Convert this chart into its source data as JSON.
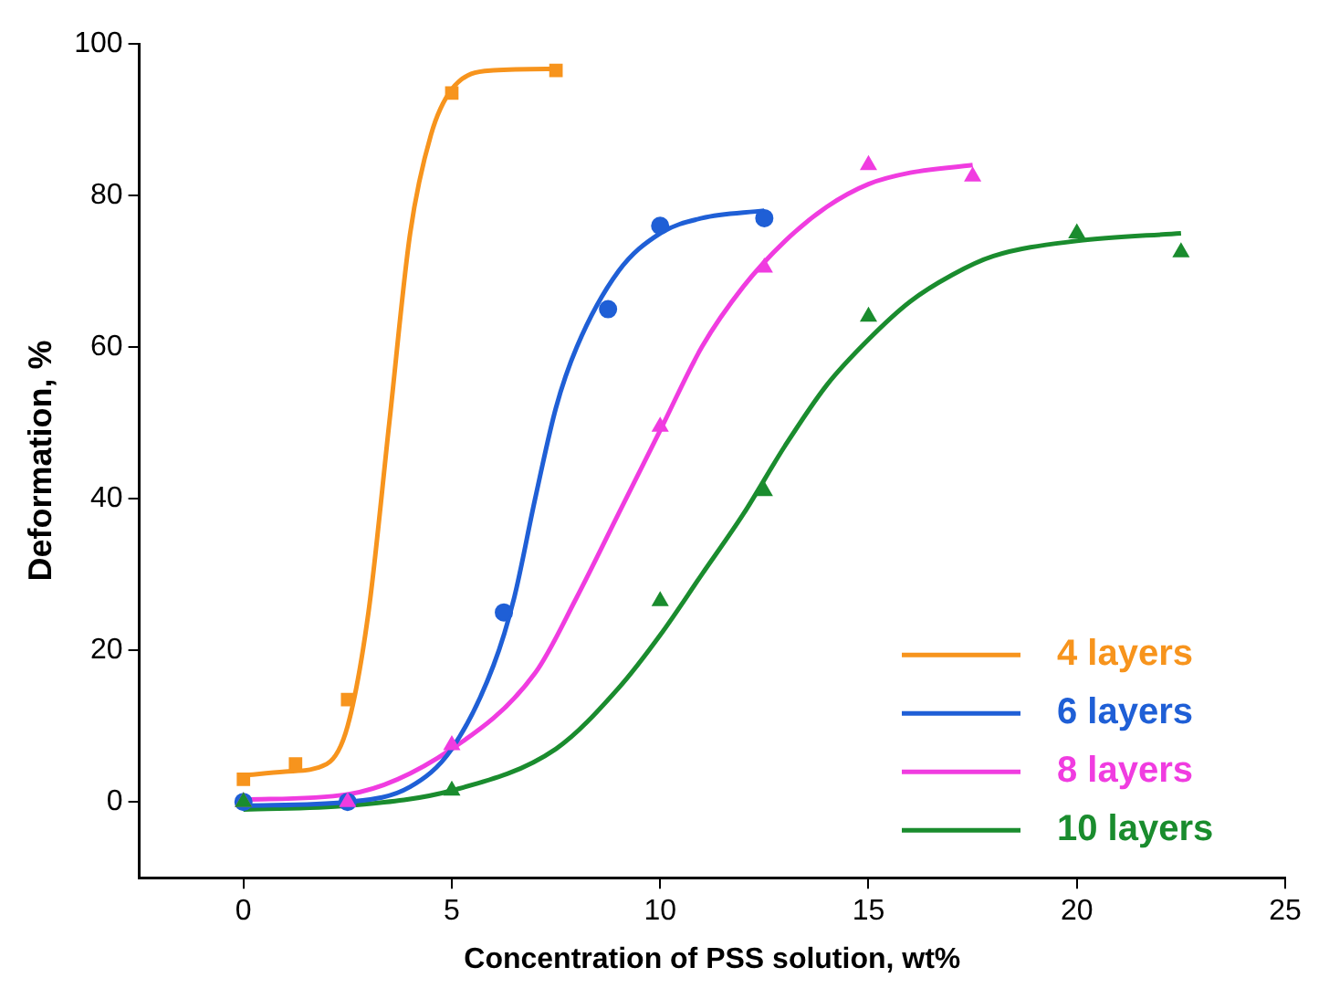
{
  "chart_data": {
    "type": "scatter",
    "xlabel": "Concentration of PSS solution, wt%",
    "ylabel": "Deformation, %",
    "xlim": [
      -2.5,
      25
    ],
    "xticks": [
      0,
      5,
      10,
      15,
      20,
      25
    ],
    "ylim": [
      -10,
      100
    ],
    "yticks": [
      0,
      20,
      40,
      60,
      80,
      100
    ],
    "grid": false,
    "legend": "bottom right",
    "series": [
      {
        "type": "scatter",
        "marker": "square",
        "color": "#f7941d",
        "x": [
          0,
          1.25,
          2.5,
          5,
          7.5
        ],
        "values": [
          3,
          5,
          13.5,
          93.5,
          96.5
        ]
      },
      {
        "type": "scatter",
        "marker": "circle",
        "color": "#1f5fd6",
        "x": [
          0,
          2.5,
          6.25,
          8.75,
          10,
          12.5
        ],
        "values": [
          0,
          0,
          25,
          65,
          76,
          77
        ]
      },
      {
        "type": "scatter",
        "marker": "triangle",
        "color": "#f03ce0",
        "x": [
          0,
          2.5,
          5,
          10,
          12.5,
          15,
          17.5
        ],
        "values": [
          0,
          0,
          7.5,
          49.5,
          70.5,
          84,
          82.5
        ]
      },
      {
        "type": "scatter",
        "marker": "triangle",
        "color": "#1a8c2e",
        "x": [
          0,
          5,
          10,
          12.5,
          15,
          20,
          22.5
        ],
        "values": [
          0,
          1.5,
          26.5,
          41,
          64,
          75,
          72.5
        ]
      },
      {
        "type": "line",
        "name": "4 layers",
        "marker": "none",
        "color": "#f7941d",
        "x": [
          0,
          1,
          2,
          2.5,
          3,
          3.5,
          4,
          4.5,
          5,
          6,
          7.5
        ],
        "values": [
          3.5,
          4,
          5,
          10,
          25,
          50,
          75,
          88,
          94,
          96.5,
          96.7
        ]
      },
      {
        "type": "line",
        "name": "6 layers",
        "marker": "none",
        "color": "#1f5fd6",
        "x": [
          0,
          2.5,
          4,
          5,
          6,
          6.5,
          7,
          7.5,
          8,
          9,
          10,
          11,
          12.5
        ],
        "values": [
          -0.5,
          0,
          2,
          7,
          18,
          27,
          40,
          52,
          60,
          70,
          75,
          77,
          78
        ]
      },
      {
        "type": "line",
        "name": "8 layers",
        "marker": "none",
        "color": "#f03ce0",
        "x": [
          0,
          2.5,
          5,
          7,
          8,
          9,
          10,
          11,
          12,
          13,
          14,
          15,
          16,
          17.5
        ],
        "values": [
          0.3,
          1,
          7,
          17,
          27,
          38,
          49,
          60,
          68,
          74,
          78.5,
          81.5,
          83,
          84
        ]
      },
      {
        "type": "line",
        "name": "10 layers",
        "marker": "none",
        "color": "#1a8c2e",
        "x": [
          0,
          2.5,
          5,
          7.5,
          9,
          10,
          11,
          12,
          13,
          14,
          15,
          16,
          17,
          18,
          20,
          22.5
        ],
        "values": [
          -1,
          -0.5,
          1.5,
          7,
          15,
          22,
          30,
          38,
          47,
          55,
          61,
          66,
          69.5,
          72,
          74,
          75
        ]
      }
    ]
  }
}
